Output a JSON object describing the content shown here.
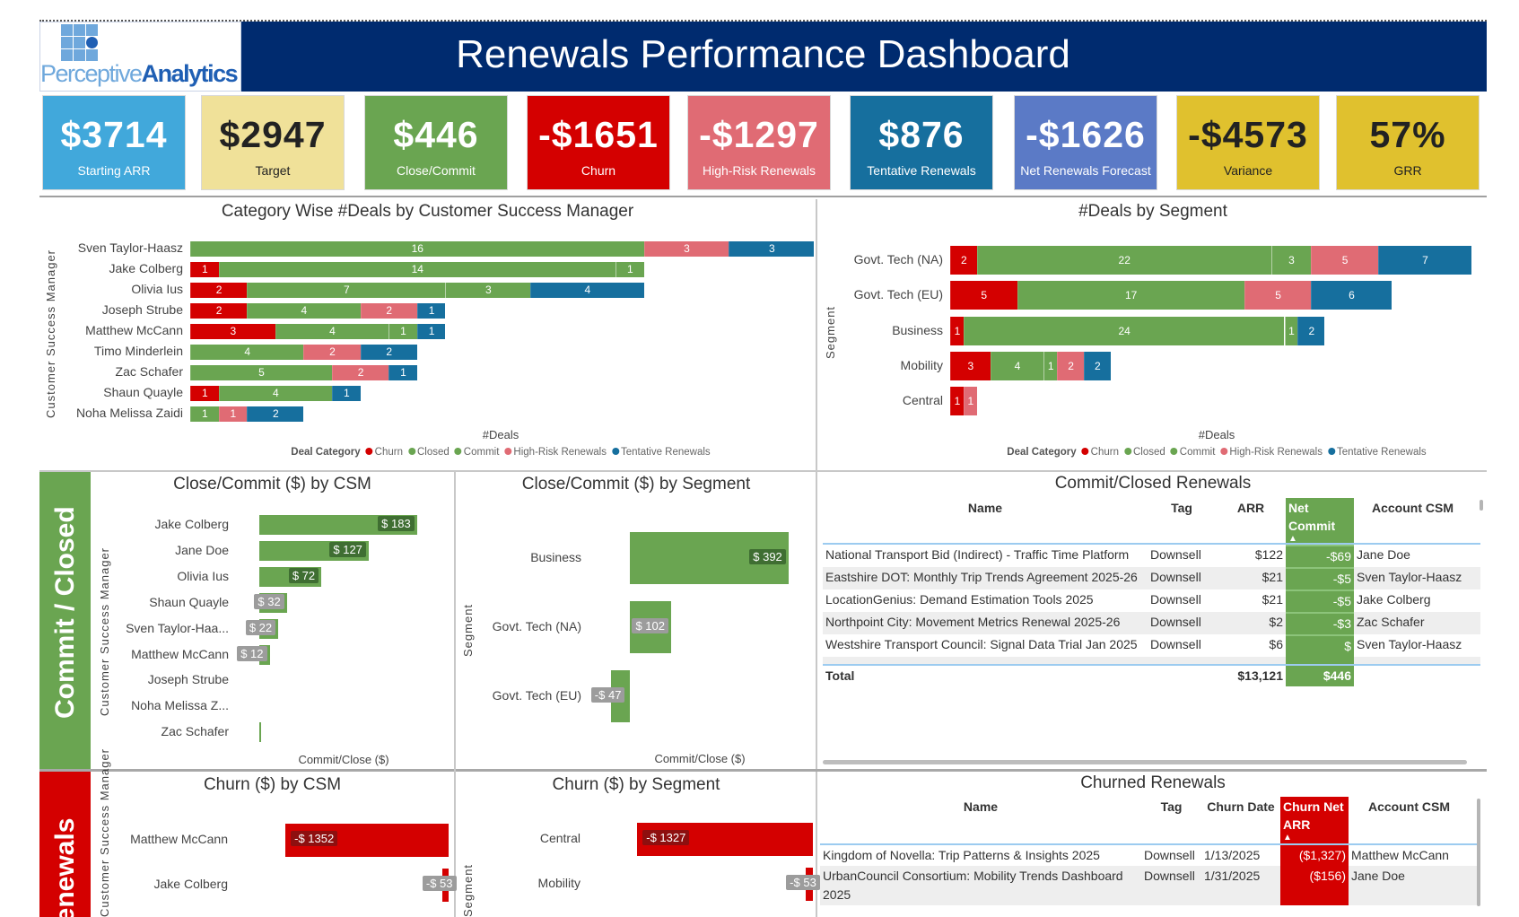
{
  "header": {
    "title": "Renewals Performance Dashboard",
    "logo_text_light": "Perceptive",
    "logo_text_bold": "Analytics"
  },
  "colors": {
    "navy": "#002b6f",
    "churn": "#d40000",
    "closed": "#6aa551",
    "commit": "#6aa551",
    "high_risk": "#e06b74",
    "tentative": "#166f9e"
  },
  "kpis": [
    {
      "value": "$3714",
      "label": "Starting ARR",
      "bg": "#41a8db",
      "fg": "#ffffff"
    },
    {
      "value": "$2947",
      "label": "Target",
      "bg": "#f0e199",
      "fg": "#222222"
    },
    {
      "value": "$446",
      "label": "Close/Commit",
      "bg": "#6aa551",
      "fg": "#ffffff"
    },
    {
      "value": "-$1651",
      "label": "Churn",
      "bg": "#d40000",
      "fg": "#ffffff"
    },
    {
      "value": "-$1297",
      "label": "High-Risk Renewals",
      "bg": "#e06b74",
      "fg": "#ffffff"
    },
    {
      "value": "$876",
      "label": "Tentative Renewals",
      "bg": "#166f9e",
      "fg": "#ffffff"
    },
    {
      "value": "-$1626",
      "label": "Net Renewals Forecast",
      "bg": "#5b7ac6",
      "fg": "#ffffff"
    },
    {
      "value": "-$4573",
      "label": "Variance",
      "bg": "#e0c12e",
      "fg": "#222222"
    },
    {
      "value": "57%",
      "label": "GRR",
      "bg": "#e0c12e",
      "fg": "#222222"
    }
  ],
  "sections": {
    "commit_closed": "Commit / Closed",
    "churned": "Renewals"
  },
  "chart_data": [
    {
      "type": "bar",
      "orientation": "horizontal",
      "stacked": true,
      "title": "Category Wise #Deals by Customer Success Manager",
      "xlabel": "#Deals",
      "ylabel": "Customer Success Manager",
      "legend_title": "Deal Category",
      "legend_position": "bottom",
      "grid": false,
      "categories": [
        "Sven Taylor-Haasz",
        "Jake Colberg",
        "Olivia Ius",
        "Joseph Strube",
        "Matthew McCann",
        "Timo Minderlein",
        "Zac Schafer",
        "Shaun Quayle",
        "Noha Melissa Zaidi"
      ],
      "series": [
        {
          "name": "Churn",
          "color": "#d40000",
          "values": [
            0,
            1,
            2,
            2,
            3,
            0,
            0,
            1,
            0
          ]
        },
        {
          "name": "Closed",
          "color": "#6aa551",
          "values": [
            16,
            14,
            7,
            4,
            4,
            4,
            5,
            4,
            1
          ]
        },
        {
          "name": "Commit",
          "color": "#6aa551",
          "values": [
            0,
            1,
            3,
            0,
            1,
            0,
            0,
            0,
            0
          ]
        },
        {
          "name": "High-Risk Renewals",
          "color": "#e06b74",
          "values": [
            3,
            0,
            0,
            2,
            0,
            2,
            2,
            0,
            1
          ]
        },
        {
          "name": "Tentative Renewals",
          "color": "#166f9e",
          "values": [
            3,
            0,
            4,
            1,
            1,
            2,
            1,
            1,
            2
          ]
        }
      ]
    },
    {
      "type": "bar",
      "orientation": "horizontal",
      "stacked": true,
      "title": "#Deals by Segment",
      "xlabel": "#Deals",
      "ylabel": "Segment",
      "legend_title": "Deal Category",
      "legend_position": "bottom",
      "grid": false,
      "categories": [
        "Govt. Tech (NA)",
        "Govt. Tech (EU)",
        "Business",
        "Mobility",
        "Central"
      ],
      "series": [
        {
          "name": "Churn",
          "color": "#d40000",
          "values": [
            2,
            5,
            1,
            3,
            1
          ]
        },
        {
          "name": "Closed",
          "color": "#6aa551",
          "values": [
            22,
            17,
            24,
            4,
            0
          ]
        },
        {
          "name": "Commit",
          "color": "#6aa551",
          "values": [
            3,
            0,
            1,
            1,
            0
          ]
        },
        {
          "name": "High-Risk Renewals",
          "color": "#e06b74",
          "values": [
            5,
            5,
            0,
            2,
            1
          ]
        },
        {
          "name": "Tentative Renewals",
          "color": "#166f9e",
          "values": [
            7,
            6,
            2,
            2,
            0
          ]
        }
      ]
    },
    {
      "type": "bar",
      "orientation": "horizontal",
      "title": "Close/Commit ($) by CSM",
      "xlabel": "Commit/Close ($)",
      "ylabel": "Customer Success Manager",
      "color": "#6aa551",
      "categories": [
        "Jake Colberg",
        "Jane Doe",
        "Olivia Ius",
        "Shaun Quayle",
        "Sven Taylor-Haa...",
        "Matthew McCann",
        "Joseph Strube",
        "Noha Melissa Z...",
        "Zac Schafer"
      ],
      "values": [
        183,
        127,
        72,
        32,
        22,
        12,
        null,
        null,
        1
      ],
      "labels": [
        "$ 183",
        "$ 127",
        "$ 72",
        "$ 32",
        "$ 22",
        "$ 12",
        null,
        null,
        null
      ]
    },
    {
      "type": "bar",
      "orientation": "horizontal",
      "title": "Close/Commit ($) by Segment",
      "xlabel": "Commit/Close ($)",
      "ylabel": "Segment",
      "color": "#6aa551",
      "categories": [
        "Business",
        "Govt. Tech (NA)",
        "Govt. Tech (EU)"
      ],
      "values": [
        392,
        102,
        -47
      ],
      "labels": [
        "$ 392",
        "$ 102",
        "-$ 47"
      ]
    },
    {
      "type": "bar",
      "orientation": "horizontal",
      "title": "Churn ($) by CSM",
      "ylabel": "Customer Success Manager",
      "color": "#d40000",
      "categories": [
        "Matthew McCann",
        "Jake Colberg"
      ],
      "values": [
        -1352,
        -53
      ],
      "labels": [
        "-$ 1352",
        "-$ 53"
      ]
    },
    {
      "type": "bar",
      "orientation": "horizontal",
      "title": "Churn ($) by Segment",
      "ylabel": "Segment",
      "color": "#d40000",
      "categories": [
        "Central",
        "Mobility"
      ],
      "values": [
        -1327,
        -53
      ],
      "labels": [
        "-$ 1327",
        "-$ 53"
      ]
    }
  ],
  "commit_table": {
    "title": "Commit/Closed Renewals",
    "columns": [
      "Name",
      "Tag",
      "ARR",
      "Net Commit",
      "Account CSM"
    ],
    "sort_icon": "▲",
    "rows": [
      [
        "National Transport Bid (Indirect) - Traffic Time Platform",
        "Downsell",
        "$122",
        "-$69",
        "Jane Doe"
      ],
      [
        "Eastshire DOT: Monthly Trip Trends Agreement 2025-26",
        "Downsell",
        "$21",
        "-$5",
        "Sven Taylor-Haasz"
      ],
      [
        "LocationGenius: Demand Estimation Tools 2025",
        "Downsell",
        "$21",
        "-$5",
        "Jake Colberg"
      ],
      [
        "Northpoint City: Movement Metrics Renewal 2025-26",
        "Downsell",
        "$2",
        "-$3",
        "Zac Schafer"
      ],
      [
        "Westshire Transport Council: Signal Data Trial Jan 2025",
        "Downsell",
        "$6",
        "$",
        "Sven Taylor-Haasz"
      ]
    ],
    "total": {
      "label": "Total",
      "arr": "$13,121",
      "net_commit": "$446"
    }
  },
  "churn_table": {
    "title": "Churned Renewals",
    "columns": [
      "Name",
      "Tag",
      "Churn Date",
      "Churn Net ARR",
      "Account CSM"
    ],
    "sort_icon": "▲",
    "rows": [
      [
        "Kingdom of Novella: Trip Patterns & Insights 2025",
        "Downsell",
        "1/13/2025",
        "($1,327)",
        "Matthew McCann"
      ],
      [
        "UrbanCouncil Consortium: Mobility Trends Dashboard 2025",
        "Downsell",
        "1/31/2025",
        "($156)",
        "Jane Doe"
      ]
    ]
  }
}
